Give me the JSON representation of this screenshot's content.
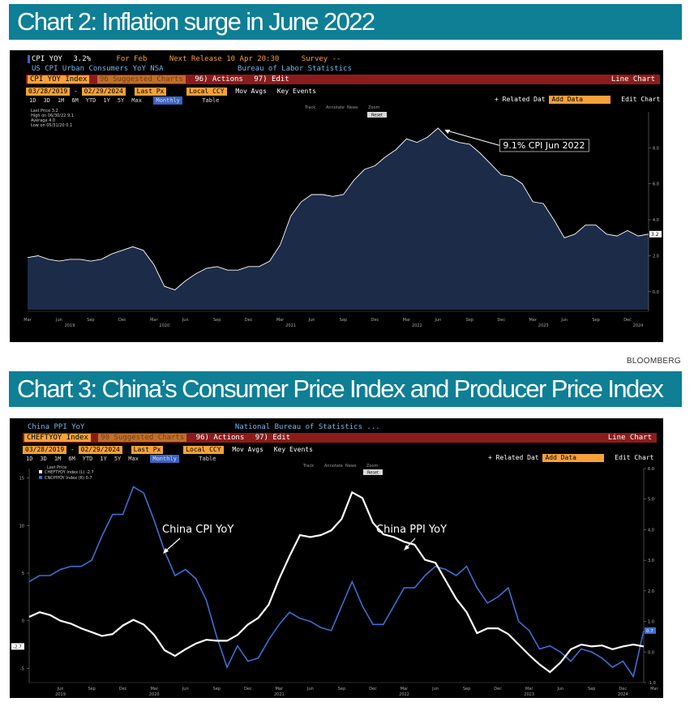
{
  "chart2": {
    "banner_title": "Chart 2: Inflation surge in June 2022",
    "header": {
      "ticker": "CPI YOY",
      "value": "3.2%",
      "for_label": "For Feb",
      "release": "Next Release 10 Apr 20:30",
      "survey": "Survey --",
      "description": "US CPI Urban Consumers YoY NSA",
      "source": "Bureau of Labor Statistics"
    },
    "command": {
      "index": "CPI YOY Index",
      "suggested": "96 Suggested Charts",
      "actions": "96) Actions",
      "edit": "97) Edit",
      "chart_type": "Line Chart"
    },
    "controls": {
      "start_date": "03/28/2019",
      "end_date": "02/29/2024",
      "price_field": "Last Px",
      "currency": "Local CCY",
      "mov_avgs": "Mov Avgs",
      "key_events": "Key Events"
    },
    "toolbar": {
      "periods": [
        "1D",
        "3D",
        "1M",
        "6M",
        "YTD",
        "1Y",
        "5Y",
        "Max"
      ],
      "frequency": "Monthly",
      "table": "Table",
      "related": "+ Related Dat",
      "add_data": "Add Data",
      "edit_chart": "Edit Chart",
      "tools": [
        "Track",
        "Annotate",
        "News",
        "Zoom"
      ],
      "reset": "Reset"
    },
    "stats": {
      "last_price": "Last Price  3.2",
      "high": "High on 06/30/22  9.1",
      "average": "Average  4.0",
      "low": "Low on 05/31/20  0.1"
    },
    "last_value_tag": "3.2",
    "colors": {
      "fill": "#1c2b48",
      "line": "#ffffff",
      "command_bar": "#8c1c1c",
      "field": "#f7a13a",
      "banner": "#0e7f95"
    }
  },
  "chart3": {
    "banner_title": "Chart 3: China’s Consumer Price Index and Producer Price Index",
    "header": {
      "ticker": "China PPI YoY",
      "source": "National Bureau of Statistics ..."
    },
    "command": {
      "index": "CHEFTYOY Index",
      "suggested": "90 Suggested Charts",
      "actions": "96) Actions",
      "edit": "97) Edit",
      "chart_type": "Line Chart"
    },
    "controls": {
      "start_date": "03/28/2019",
      "end_date": "02/29/2024",
      "price_field": "Last Px",
      "currency": "Local CCY",
      "mov_avgs": "Mov Avgs",
      "key_events": "Key Events"
    },
    "toolbar": {
      "periods": [
        "1D",
        "3D",
        "1M",
        "6M",
        "YTD",
        "1Y",
        "5Y",
        "Max"
      ],
      "frequency": "Monthly",
      "table": "Table",
      "related": "+ Related Dat",
      "add_data": "Add Data",
      "edit_chart": "Edit Chart",
      "tools": [
        "Track",
        "Annotate",
        "News",
        "Zoom"
      ],
      "reset": "Reset"
    },
    "legend": {
      "heading": "Last Price",
      "entry1": "CHEFTYOY Index (L)  -2.7",
      "entry2": "CNCPIYOY Index (R)  0.7"
    },
    "left_tag": "-2.7",
    "right_tag": "0.7",
    "colors": {
      "ppi_line": "#ffffff",
      "cpi_line": "#3d6fd1"
    }
  },
  "source_label": "BLOOMBERG",
  "chart_data": [
    {
      "type": "area",
      "title": "Chart 2: Inflation surge in June 2022",
      "series": [
        {
          "name": "CPI YOY",
          "values": [
            1.9,
            2.0,
            1.8,
            1.7,
            1.8,
            1.8,
            1.7,
            1.8,
            2.1,
            2.3,
            2.5,
            2.3,
            1.5,
            0.3,
            0.1,
            0.6,
            1.0,
            1.3,
            1.4,
            1.2,
            1.2,
            1.4,
            1.4,
            1.7,
            2.6,
            4.2,
            5.0,
            5.4,
            5.4,
            5.3,
            5.4,
            6.2,
            6.8,
            7.0,
            7.5,
            7.9,
            8.5,
            8.3,
            8.6,
            9.1,
            8.5,
            8.3,
            8.2,
            7.7,
            7.1,
            6.5,
            6.4,
            6.0,
            5.0,
            4.9,
            4.0,
            3.0,
            3.2,
            3.7,
            3.7,
            3.2,
            3.1,
            3.4,
            3.1,
            3.2
          ]
        }
      ],
      "x_start": "2019-03",
      "x_end": "2024-02",
      "x_frequency": "monthly",
      "x_ticks": [
        "Mar",
        "Jun",
        "Sep",
        "Dec",
        "Mar",
        "Jun",
        "Sep",
        "Dec",
        "Mar",
        "Jun",
        "Sep",
        "Dec",
        "Mar",
        "Jun",
        "Sep",
        "Dec",
        "Mar",
        "Jun",
        "Sep",
        "Dec"
      ],
      "year_ticks": [
        "2019",
        "2020",
        "2021",
        "2022",
        "2023",
        "2024"
      ],
      "ylim": [
        -1.0,
        10.0
      ],
      "y_ticks": [
        "0.0",
        "2.0",
        "4.0",
        "6.0",
        "8.0"
      ],
      "annotation": "9.1% CPI Jun 2022",
      "grid": false
    },
    {
      "type": "line",
      "title": "Chart 3: China’s Consumer Price Index and Producer Price Index",
      "series": [
        {
          "name": "China PPI YoY",
          "axis": "left",
          "values": [
            0.4,
            0.9,
            0.6,
            0.0,
            -0.3,
            -0.8,
            -1.2,
            -1.6,
            -1.4,
            -0.5,
            0.1,
            -0.4,
            -1.5,
            -3.1,
            -3.7,
            -3.0,
            -2.4,
            -2.0,
            -2.1,
            -2.1,
            -1.5,
            -0.4,
            0.3,
            1.7,
            4.4,
            6.8,
            9.0,
            8.8,
            9.0,
            9.5,
            10.7,
            13.5,
            12.9,
            10.3,
            9.1,
            8.8,
            8.3,
            8.0,
            6.4,
            6.1,
            4.2,
            2.3,
            0.9,
            -1.3,
            -0.8,
            -0.8,
            -1.4,
            -2.5,
            -3.6,
            -4.6,
            -5.4,
            -4.4,
            -3.0,
            -2.5,
            -2.7,
            -2.6,
            -3.0,
            -2.7,
            -2.5,
            -2.7
          ]
        },
        {
          "name": "China CPI YoY",
          "axis": "right",
          "values": [
            2.3,
            2.5,
            2.5,
            2.7,
            2.8,
            2.8,
            3.0,
            3.8,
            4.5,
            4.5,
            5.4,
            5.2,
            4.3,
            3.3,
            2.5,
            2.7,
            2.4,
            1.7,
            0.5,
            -0.5,
            0.2,
            -0.3,
            -0.2,
            0.4,
            0.9,
            1.3,
            1.1,
            1.0,
            0.8,
            0.7,
            1.5,
            2.3,
            1.5,
            0.9,
            0.9,
            1.5,
            2.1,
            2.1,
            2.5,
            2.8,
            2.7,
            2.5,
            2.8,
            2.1,
            1.6,
            1.8,
            2.1,
            1.0,
            0.7,
            0.1,
            0.2,
            0.0,
            -0.3,
            0.1,
            0.0,
            -0.2,
            -0.5,
            -0.3,
            -0.8,
            0.7
          ]
        }
      ],
      "x_start": "2019-03",
      "x_end": "2024-02",
      "x_frequency": "monthly",
      "x_ticks": [
        "Jun",
        "Sep",
        "Dec",
        "Mar",
        "Jun",
        "Sep",
        "Dec",
        "Mar",
        "Jun",
        "Sep",
        "Dec",
        "Mar",
        "Jun",
        "Sep",
        "Dec",
        "Mar",
        "Jun",
        "Sep",
        "Dec",
        "Mar"
      ],
      "year_ticks": [
        "2019",
        "2020",
        "2021",
        "2022",
        "2023",
        "2024"
      ],
      "ylim_left": [
        -6.5,
        16.0
      ],
      "y_ticks_left": [
        "-5",
        "0",
        "5",
        "10",
        "15"
      ],
      "ylim_right": [
        -1.0,
        6.0
      ],
      "y_ticks_right": [
        "-1.0",
        "0.0",
        "1.0",
        "2.0",
        "3.0",
        "4.0",
        "5.0",
        "6.0"
      ],
      "annotations": [
        "China CPI YoY",
        "China PPI YoY"
      ],
      "grid": false
    }
  ]
}
